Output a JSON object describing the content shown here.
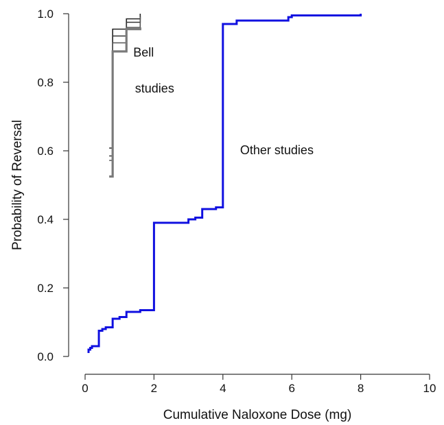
{
  "chart_data": {
    "type": "line",
    "xlabel": "Cumulative Naloxone Dose (mg)",
    "ylabel": "Probability of Reversal",
    "xlim": [
      0,
      10
    ],
    "ylim": [
      0,
      1
    ],
    "x_ticks": [
      0,
      2,
      4,
      6,
      8,
      10
    ],
    "y_ticks": [
      0.0,
      0.2,
      0.4,
      0.6,
      0.8,
      1.0
    ],
    "x_tick_labels": [
      "0",
      "2",
      "4",
      "6",
      "8",
      "10"
    ],
    "y_tick_labels": [
      "0.0",
      "0.2",
      "0.4",
      "0.6",
      "0.8",
      "1.0"
    ],
    "grid": false,
    "annotations": [
      {
        "text": "Bell",
        "x": 1.4,
        "y": 0.875
      },
      {
        "text": "studies",
        "x": 1.45,
        "y": 0.77
      },
      {
        "text": "Other studies",
        "x": 4.5,
        "y": 0.59
      }
    ],
    "series": [
      {
        "color": "#1010e0",
        "step": true,
        "points": [
          [
            0.1,
            0.01
          ],
          [
            0.1,
            0.02
          ],
          [
            0.15,
            0.025
          ],
          [
            0.2,
            0.03
          ],
          [
            0.4,
            0.075
          ],
          [
            0.5,
            0.08
          ],
          [
            0.6,
            0.085
          ],
          [
            0.8,
            0.11
          ],
          [
            1.0,
            0.115
          ],
          [
            1.2,
            0.13
          ],
          [
            1.6,
            0.135
          ],
          [
            2.0,
            0.39
          ],
          [
            3.0,
            0.4
          ],
          [
            3.2,
            0.405
          ],
          [
            3.4,
            0.43
          ],
          [
            3.8,
            0.435
          ],
          [
            4.0,
            0.97
          ],
          [
            4.4,
            0.98
          ],
          [
            5.9,
            0.99
          ],
          [
            6.0,
            0.995
          ],
          [
            8.0,
            1.0
          ]
        ]
      },
      {
        "color": "#222222",
        "step": true,
        "points": [
          [
            0.7,
            0.608
          ],
          [
            0.8,
            0.608
          ],
          [
            0.8,
            0.955
          ],
          [
            1.2,
            0.985
          ],
          [
            1.6,
            1.0
          ]
        ]
      },
      {
        "color": "#333333",
        "step": true,
        "points": [
          [
            0.7,
            0.585
          ],
          [
            0.8,
            0.585
          ],
          [
            0.8,
            0.935
          ],
          [
            1.2,
            0.975
          ],
          [
            1.6,
            0.995
          ]
        ]
      },
      {
        "color": "#555555",
        "step": true,
        "points": [
          [
            0.7,
            0.572
          ],
          [
            0.8,
            0.572
          ],
          [
            0.8,
            0.915
          ],
          [
            1.2,
            0.96
          ],
          [
            1.6,
            0.99
          ]
        ]
      },
      {
        "color": "#7a7a7a",
        "step": true,
        "points": [
          [
            0.7,
            0.525
          ],
          [
            0.8,
            0.525
          ],
          [
            0.8,
            0.89
          ],
          [
            1.2,
            0.955
          ],
          [
            1.6,
            0.96
          ]
        ]
      }
    ]
  }
}
